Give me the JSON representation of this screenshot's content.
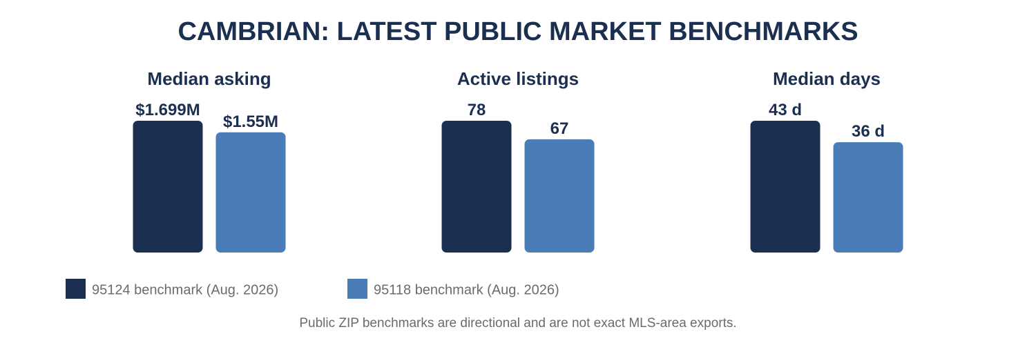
{
  "chart_data": {
    "type": "bar",
    "title": "CAMBRIAN: LATEST PUBLIC MARKET BENCHMARKS",
    "colors": {
      "series_0": "#1b2f51",
      "series_1": "#4a7db8"
    },
    "legend": {
      "placement": "bottom-left",
      "entries": [
        "95124 benchmark (Aug. 2026)",
        "95118 benchmark (Aug. 2026)"
      ]
    },
    "grid": false,
    "panels": [
      {
        "title": "Median asking",
        "series": [
          {
            "name": "95124 benchmark (Aug. 2026)",
            "value": 1.699,
            "label": "$1.699M"
          },
          {
            "name": "95118 benchmark (Aug. 2026)",
            "value": 1.55,
            "label": "$1.55M"
          }
        ]
      },
      {
        "title": "Active listings",
        "series": [
          {
            "name": "95124 benchmark (Aug. 2026)",
            "value": 78,
            "label": "78"
          },
          {
            "name": "95118 benchmark (Aug. 2026)",
            "value": 67,
            "label": "67"
          }
        ]
      },
      {
        "title": "Median days",
        "series": [
          {
            "name": "95124 benchmark (Aug. 2026)",
            "value": 43,
            "label": "43 d"
          },
          {
            "name": "95118 benchmark (Aug. 2026)",
            "value": 36,
            "label": "36 d"
          }
        ]
      }
    ],
    "footnote": "Public ZIP benchmarks are directional and are not exact MLS-area exports."
  }
}
